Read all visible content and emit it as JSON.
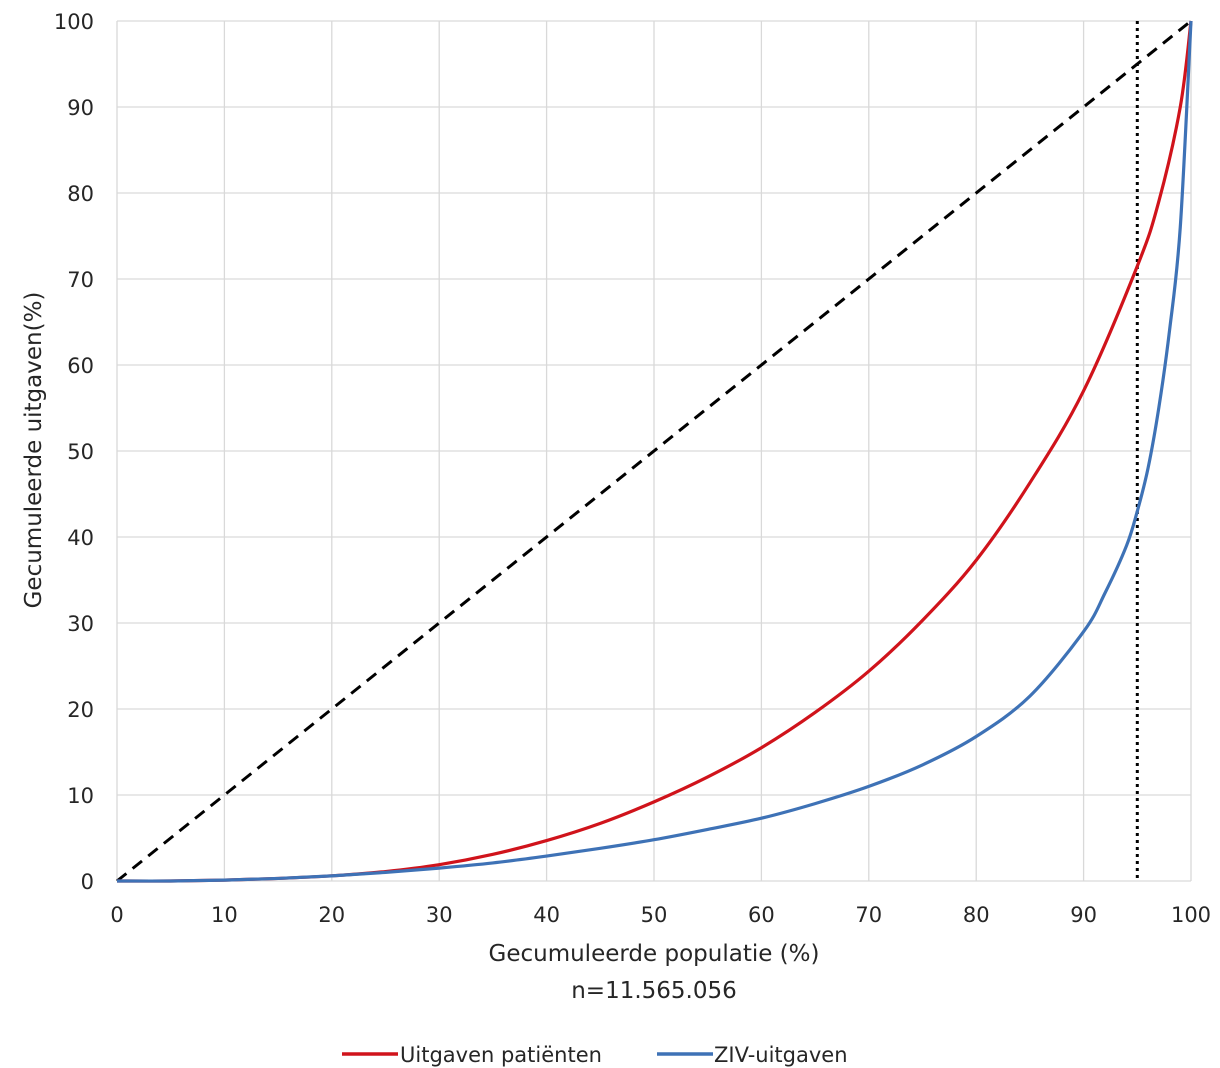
{
  "chart_data": {
    "type": "line",
    "xlabel": "Gecumuleerde populatie (%)",
    "xlabel_sub": "n=11.565.056",
    "ylabel": "Gecumuleerde uitgaven(%)",
    "xlim": [
      0,
      100
    ],
    "ylim": [
      0,
      100
    ],
    "x_ticks": [
      "0",
      "10",
      "20",
      "30",
      "40",
      "50",
      "60",
      "70",
      "80",
      "90",
      "100"
    ],
    "y_ticks": [
      "0",
      "10",
      "20",
      "30",
      "40",
      "50",
      "60",
      "70",
      "80",
      "90",
      "100"
    ],
    "grid": true,
    "legend_position": "bottom",
    "reference_lines": [
      {
        "style": "dashed",
        "color": "#000000",
        "points": [
          [
            0,
            0
          ],
          [
            100,
            100
          ]
        ]
      },
      {
        "style": "dotted",
        "color": "#000000",
        "x": 95
      }
    ],
    "series": [
      {
        "name": "Uitgaven patiënten",
        "color": "#d0131b",
        "x": [
          0,
          5,
          10,
          15,
          20,
          25,
          30,
          35,
          40,
          45,
          50,
          55,
          60,
          65,
          70,
          75,
          80,
          85,
          90,
          95,
          97,
          99,
          100
        ],
        "y": [
          0,
          0,
          0.1,
          0.3,
          0.6,
          1.1,
          1.9,
          3.1,
          4.7,
          6.7,
          9.2,
          12.1,
          15.5,
          19.6,
          24.4,
          30.3,
          37.3,
          46.3,
          57.0,
          71.5,
          79.0,
          90.0,
          100
        ]
      },
      {
        "name": "ZIV-uitgaven",
        "color": "#3e72b6",
        "x": [
          0,
          5,
          10,
          15,
          20,
          25,
          30,
          35,
          40,
          45,
          50,
          55,
          60,
          65,
          70,
          75,
          80,
          85,
          90,
          92,
          94,
          95,
          96,
          97,
          98,
          99,
          100
        ],
        "y": [
          0,
          0,
          0.1,
          0.3,
          0.6,
          1.0,
          1.5,
          2.1,
          2.9,
          3.8,
          4.8,
          6.0,
          7.3,
          9.0,
          11.0,
          13.5,
          16.8,
          21.5,
          29.0,
          33.5,
          39.0,
          43.0,
          48.0,
          55.0,
          64.0,
          76.0,
          100
        ]
      }
    ]
  }
}
